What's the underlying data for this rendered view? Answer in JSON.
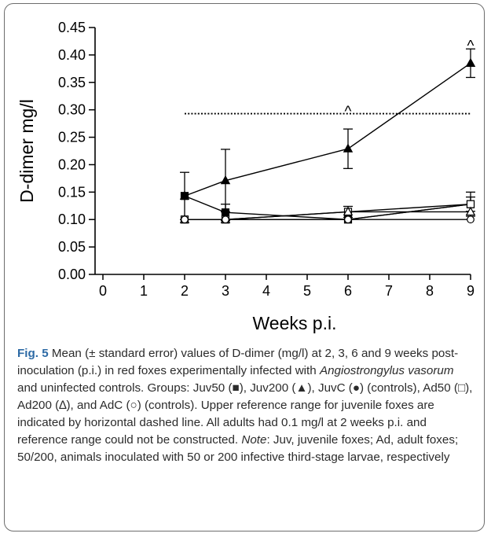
{
  "chart_data": {
    "type": "line",
    "xlabel": "Weeks p.i.",
    "ylabel": "D-dimer mg/l",
    "xlim": [
      0,
      9
    ],
    "ylim": [
      0,
      0.45
    ],
    "x_ticks": [
      0,
      1,
      2,
      3,
      4,
      5,
      6,
      7,
      8,
      9
    ],
    "y_ticks": [
      "0.00",
      "0.05",
      "0.10",
      "0.15",
      "0.20",
      "0.25",
      "0.30",
      "0.35",
      "0.40",
      "0.45"
    ],
    "grid": false,
    "legend": "none",
    "series": [
      {
        "name": "Juv50",
        "marker": "square-filled",
        "x": [
          2,
          3,
          6,
          9
        ],
        "y": [
          0.143,
          0.113,
          0.1,
          0.128
        ],
        "error": [
          0.043,
          0.015,
          0.0,
          0.013
        ]
      },
      {
        "name": "Juv200",
        "marker": "triangle-filled",
        "x": [
          2,
          3,
          6,
          9
        ],
        "y": [
          0.143,
          0.171,
          0.229,
          0.385
        ],
        "error": [
          0.0,
          0.057,
          0.036,
          0.026
        ]
      },
      {
        "name": "JuvC",
        "marker": "circle-filled",
        "x": [
          2,
          3,
          6,
          9
        ],
        "y": [
          0.1,
          0.1,
          0.1,
          0.128
        ],
        "error": [
          0.0,
          0.0,
          0.0,
          0.0
        ]
      },
      {
        "name": "Ad50",
        "marker": "square-open",
        "x": [
          2,
          3,
          6,
          9
        ],
        "y": [
          0.1,
          0.1,
          0.114,
          0.128
        ],
        "error": [
          0.0,
          0.0,
          0.01,
          0.022
        ]
      },
      {
        "name": "Ad200",
        "marker": "triangle-open",
        "x": [
          2,
          3,
          6,
          9
        ],
        "y": [
          0.1,
          0.1,
          0.114,
          0.114
        ],
        "error": [
          0.0,
          0.0,
          0.0,
          0.0
        ]
      },
      {
        "name": "AdC",
        "marker": "circle-open",
        "x": [
          2,
          3,
          6,
          9
        ],
        "y": [
          0.1,
          0.1,
          0.1,
          0.1
        ],
        "error": [
          0.0,
          0.0,
          0.0,
          0.0
        ]
      }
    ],
    "reference_line": {
      "y": 0.293,
      "x_range": [
        2,
        9
      ],
      "style": "dotted"
    },
    "annotations": [
      {
        "text": "^",
        "x": 6,
        "y": 0.305
      },
      {
        "text": "^",
        "x": 9,
        "y": 0.425
      }
    ]
  },
  "caption": {
    "label": "Fig. 5",
    "text_1": " Mean (± standard error) values of D-dimer (mg/l) at 2, 3, 6 and 9 weeks post-inoculation (p.i.) in red foxes experimentally infected with ",
    "species": "Angiostrongylus vasorum",
    "text_2": " and uninfected controls. Groups: Juv50 (■), Juv200 (▲), JuvC (●) (controls), Ad50 (□), Ad200 (∆), and AdC (○) (controls). Upper reference range for juvenile foxes are indicated by horizontal dashed line. All adults had 0.1 mg/l at 2 weeks p.i. and reference range could not be constructed. ",
    "note_label": "Note",
    "text_3": ": Juv, juvenile foxes; Ad, adult foxes; 50/200, animals inoculated with 50 or 200 infective third-stage larvae, respectively"
  }
}
